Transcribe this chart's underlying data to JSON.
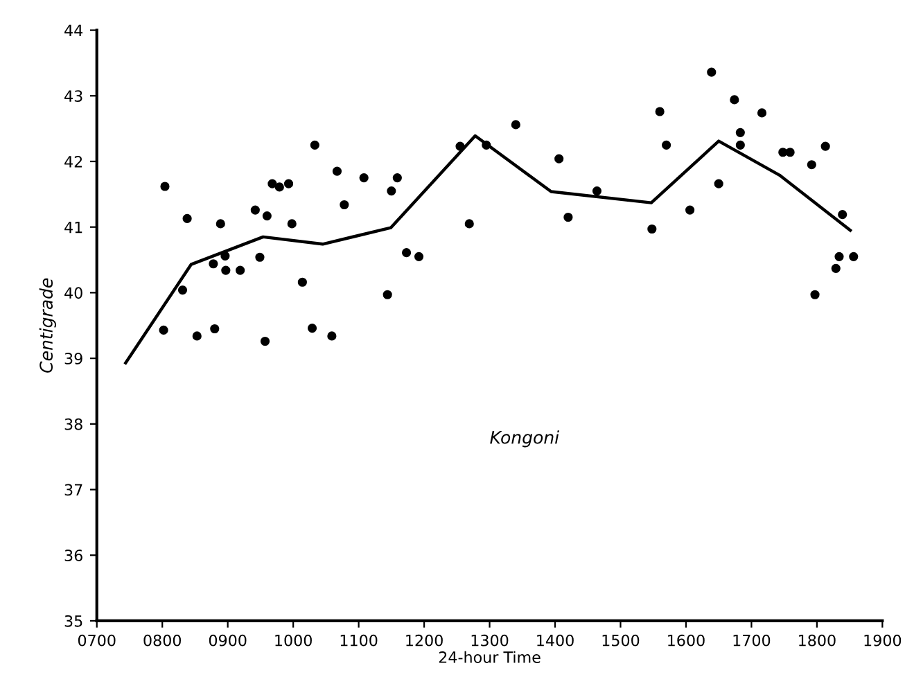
{
  "chart_data": {
    "type": "line",
    "xlabel": "24-hour Time",
    "ylabel": "Centigrade",
    "annotations": [
      "Kongoni"
    ],
    "xlim": [
      700,
      1900
    ],
    "xticks": [
      {
        "value": 700,
        "label": "0700"
      },
      {
        "value": 800,
        "label": "0800"
      },
      {
        "value": 900,
        "label": "0900"
      },
      1000,
      1100,
      1200,
      1300,
      1400,
      1500,
      1600,
      1700,
      1800,
      1900
    ],
    "ylim": [
      35,
      44
    ],
    "yticks": [
      35,
      36,
      37,
      38,
      39,
      40,
      41,
      42,
      43,
      44
    ],
    "series": [
      {
        "color": "#000000",
        "line_style": "solid",
        "x": [
          744,
          844,
          954,
          1045,
          1149,
          1278,
          1394,
          1547,
          1650,
          1743,
          1851
        ],
        "values": [
          38.93,
          40.43,
          40.85,
          40.74,
          40.99,
          42.39,
          41.54,
          41.37,
          42.31,
          41.79,
          40.95
        ]
      },
      {
        "type": "scatter",
        "color": "#000000",
        "marker": "circle",
        "x": [
          804,
          838,
          802,
          831,
          853,
          880,
          878,
          896,
          897,
          919,
          889,
          942,
          960,
          949,
          957,
          968,
          979,
          993,
          998,
          1014,
          1033,
          1029,
          1059,
          1067,
          1078,
          1108,
          1144,
          1150,
          1159,
          1173,
          1192,
          1255,
          1295,
          1269,
          1340,
          1406,
          1420,
          1464,
          1548,
          1560,
          1570,
          1606,
          1639,
          1650,
          1674,
          1683,
          1683,
          1716,
          1748,
          1759,
          1792,
          1813,
          1839,
          1834,
          1856,
          1829,
          1797
        ],
        "values": [
          41.62,
          41.13,
          39.43,
          40.04,
          39.34,
          39.45,
          40.44,
          40.56,
          40.34,
          40.34,
          41.05,
          41.26,
          41.17,
          40.54,
          39.26,
          41.66,
          41.61,
          41.66,
          41.05,
          40.16,
          42.25,
          39.46,
          39.34,
          41.85,
          41.34,
          41.75,
          39.97,
          41.55,
          41.75,
          40.61,
          40.55,
          42.23,
          42.25,
          41.05,
          42.56,
          42.04,
          41.15,
          41.55,
          40.97,
          42.76,
          42.25,
          41.26,
          43.36,
          41.66,
          42.94,
          42.44,
          42.25,
          42.74,
          42.14,
          42.14,
          41.95,
          42.23,
          41.19,
          40.55,
          40.55,
          40.37,
          39.97
        ]
      }
    ]
  }
}
